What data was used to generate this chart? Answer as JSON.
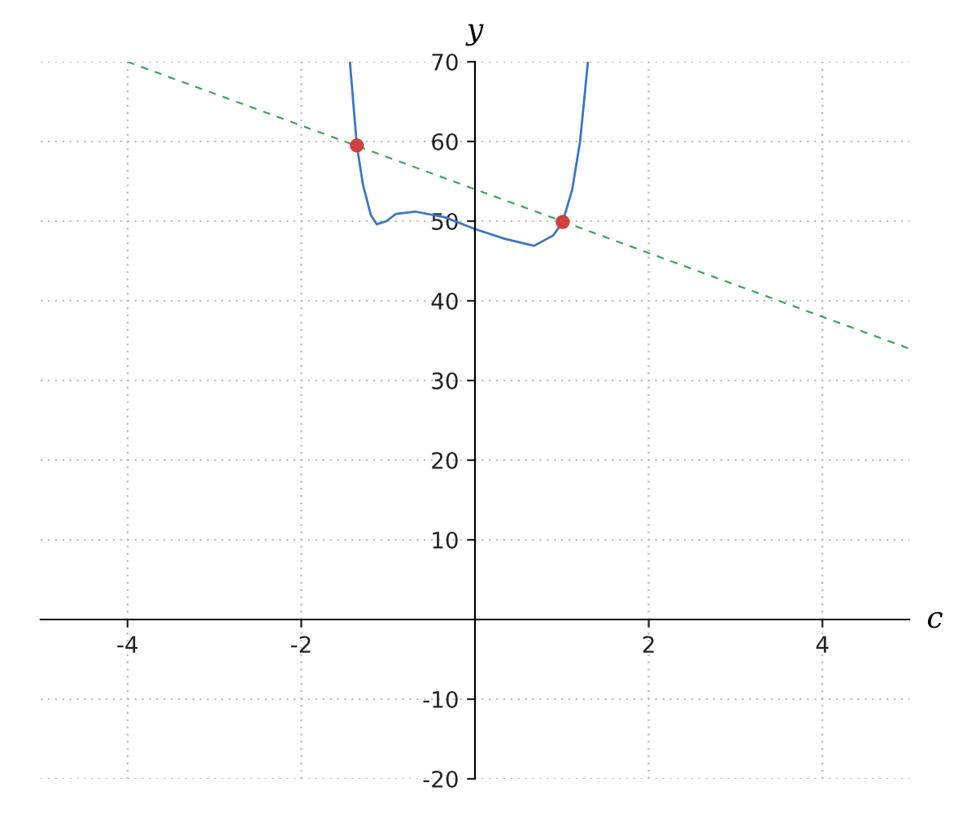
{
  "chart_data": {
    "type": "line",
    "xlabel": "c",
    "ylabel": "y",
    "xlim": [
      -5,
      5
    ],
    "ylim": [
      -20,
      70
    ],
    "xticks": [
      -4,
      -2,
      2,
      4
    ],
    "yticks": [
      -20,
      -10,
      10,
      20,
      30,
      40,
      50,
      60,
      70
    ],
    "grid": true,
    "series": [
      {
        "color": "#3a76c4",
        "line_style": "solid",
        "x": [
          -1.44,
          -1.36,
          -1.29,
          -1.2,
          -1.13,
          -1.02,
          -0.91,
          -0.69,
          -0.35,
          0,
          0.34,
          0.68,
          0.9,
          1.01,
          1.12,
          1.21,
          1.3
        ],
        "values": [
          70,
          59.5,
          54.6,
          50.8,
          49.6,
          50.0,
          50.9,
          51.2,
          50.5,
          49.0,
          47.8,
          46.9,
          48.2,
          49.9,
          54,
          60,
          70
        ]
      },
      {
        "type": "line",
        "color": "#3aa655",
        "line_style": "dashed",
        "x": [
          -4,
          5
        ],
        "values": [
          70,
          34
        ]
      },
      {
        "type": "scatter",
        "color": "#d0413c",
        "marker": "circle",
        "x": [
          -1.36,
          1.01
        ],
        "values": [
          59.5,
          49.9
        ]
      }
    ]
  }
}
